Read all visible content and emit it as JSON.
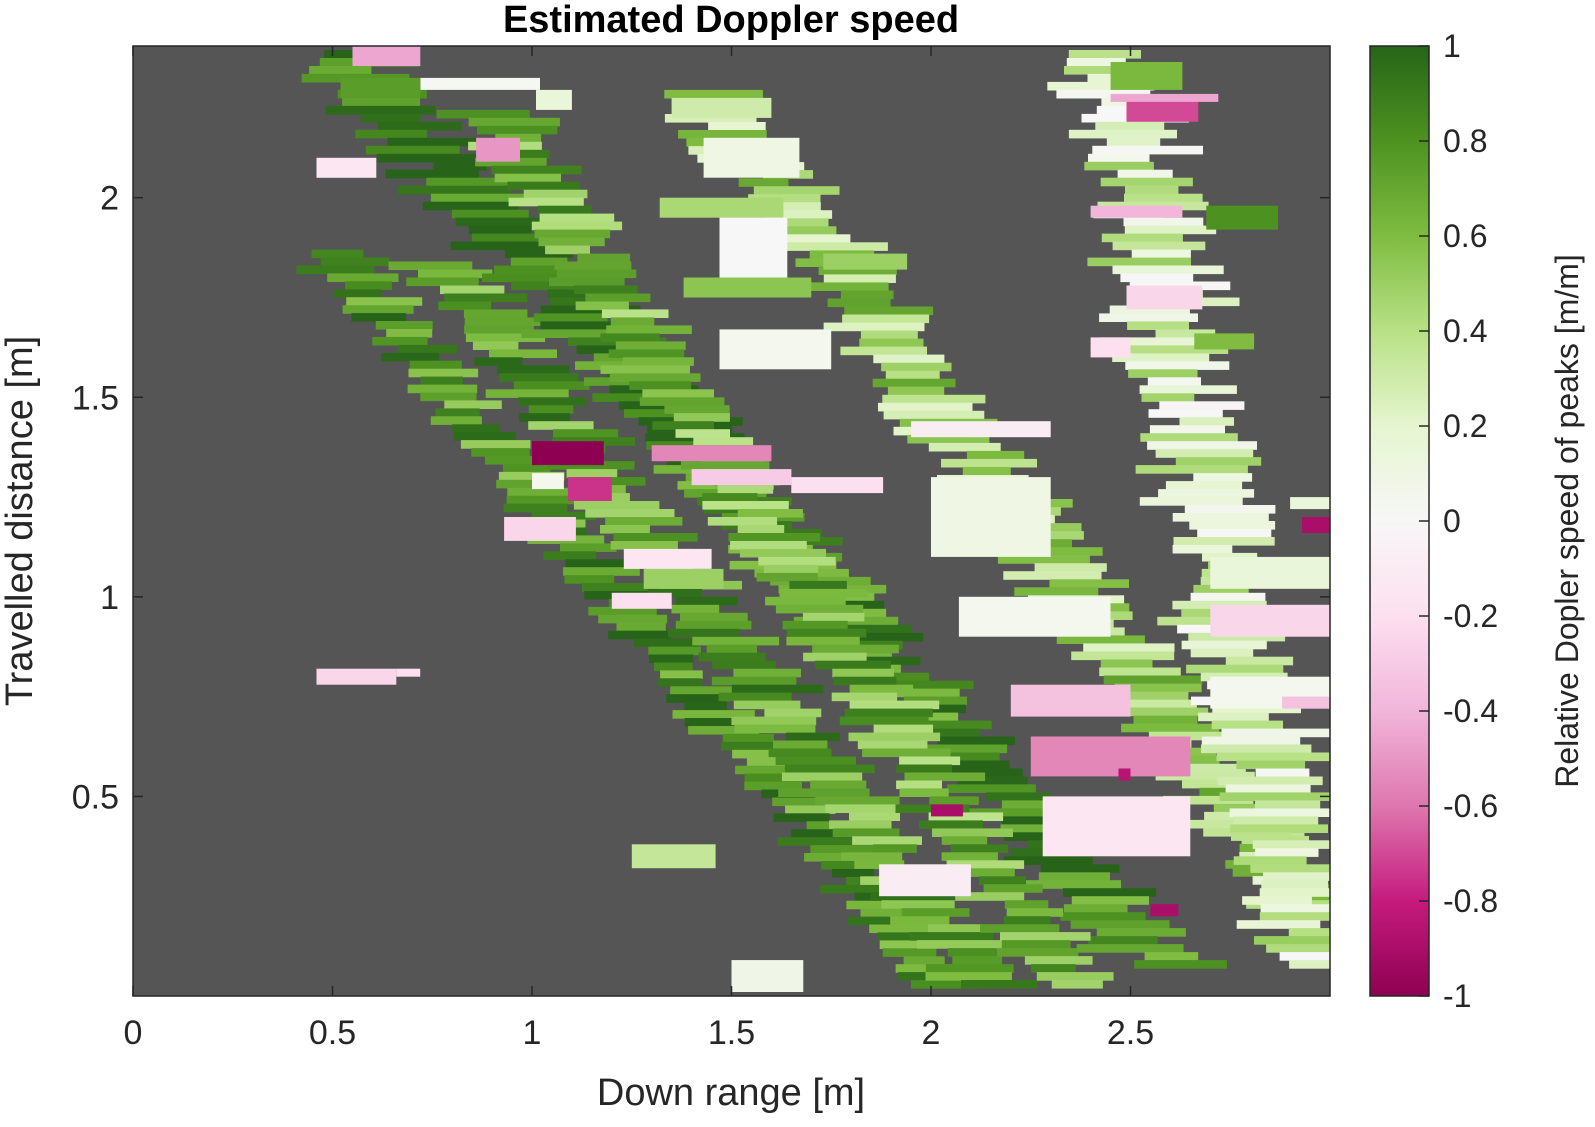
{
  "chart_data": {
    "type": "heatmap",
    "title": "Estimated Doppler speed",
    "xlabel": "Down range [m]",
    "ylabel": "Travelled distance [m]",
    "xlim": [
      0,
      3
    ],
    "ylim": [
      0,
      2.38
    ],
    "x_ticks": [
      "0",
      "0.5",
      "1",
      "1.5",
      "2",
      "2.5"
    ],
    "x_tick_values": [
      0,
      0.5,
      1,
      1.5,
      2,
      2.5
    ],
    "y_ticks": [
      "0.5",
      "1",
      "1.5",
      "2"
    ],
    "y_tick_values": [
      0.5,
      1,
      1.5,
      2
    ],
    "background_color": "#555555",
    "grid": false,
    "colorbar": {
      "label": "Relative Dopler speed of peaks [m/m]",
      "range": [
        -1,
        1
      ],
      "ticks": [
        "1",
        "0.8",
        "0.6",
        "0.4",
        "0.2",
        "0",
        "-0.2",
        "-0.4",
        "-0.6",
        "-0.8",
        "-1"
      ],
      "tick_values": [
        1,
        0.8,
        0.6,
        0.4,
        0.2,
        0,
        -0.2,
        -0.4,
        -0.6,
        -0.8,
        -1
      ],
      "colormap": "PiYG",
      "color_low": "#8e0152",
      "color_mid": "#f7f7f7",
      "color_high": "#276419"
    },
    "bands": [
      {
        "x_start": 0.5,
        "x_end": 2.05,
        "y_start": 1.85,
        "y_end": 0.0,
        "width": 0.16,
        "value": 0.78
      },
      {
        "x_start": 0.78,
        "x_end": 2.15,
        "y_start": 1.82,
        "y_end": 0.0,
        "width": 0.18,
        "value": 0.72
      },
      {
        "x_start": 0.52,
        "x_end": 2.6,
        "y_start": 2.35,
        "y_end": 0.05,
        "width": 0.22,
        "value": 0.85
      },
      {
        "x_start": 0.9,
        "x_end": 2.35,
        "y_start": 2.2,
        "y_end": 0.0,
        "width": 0.18,
        "value": 0.65
      },
      {
        "x_start": 1.45,
        "x_end": 2.95,
        "y_start": 2.25,
        "y_end": 0.2,
        "width": 0.2,
        "value": 0.45
      },
      {
        "x_start": 2.45,
        "x_end": 2.95,
        "y_start": 2.35,
        "y_end": 0.05,
        "width": 0.22,
        "value": 0.25
      }
    ],
    "patches": [
      {
        "x0": 0.55,
        "x1": 0.72,
        "y0": 2.33,
        "y1": 2.38,
        "value": -0.45
      },
      {
        "x0": 0.72,
        "x1": 1.02,
        "y0": 2.27,
        "y1": 2.3,
        "value": 0.02
      },
      {
        "x0": 0.46,
        "x1": 0.61,
        "y0": 2.05,
        "y1": 2.1,
        "value": -0.15
      },
      {
        "x0": 0.86,
        "x1": 0.97,
        "y0": 2.09,
        "y1": 2.15,
        "value": -0.5
      },
      {
        "x0": 1.35,
        "x1": 1.6,
        "y0": 2.2,
        "y1": 2.25,
        "value": 0.3
      },
      {
        "x0": 1.43,
        "x1": 1.67,
        "y0": 2.05,
        "y1": 2.15,
        "value": 0.1
      },
      {
        "x0": 1.32,
        "x1": 1.63,
        "y0": 1.95,
        "y1": 2.0,
        "value": 0.45
      },
      {
        "x0": 1.47,
        "x1": 1.64,
        "y0": 1.8,
        "y1": 1.95,
        "value": 0.0
      },
      {
        "x0": 1.38,
        "x1": 1.7,
        "y0": 1.75,
        "y1": 1.8,
        "value": 0.55
      },
      {
        "x0": 1.73,
        "x1": 1.94,
        "y0": 1.82,
        "y1": 1.86,
        "value": 0.5
      },
      {
        "x0": 1.47,
        "x1": 1.75,
        "y0": 1.57,
        "y1": 1.67,
        "value": 0.05
      },
      {
        "x0": 1.0,
        "x1": 1.18,
        "y0": 1.33,
        "y1": 1.39,
        "value": -1.0
      },
      {
        "x0": 1.0,
        "x1": 1.08,
        "y0": 1.27,
        "y1": 1.31,
        "value": 0.05
      },
      {
        "x0": 1.09,
        "x1": 1.2,
        "y0": 1.24,
        "y1": 1.3,
        "value": -0.75
      },
      {
        "x0": 0.93,
        "x1": 1.11,
        "y0": 1.14,
        "y1": 1.2,
        "value": -0.25
      },
      {
        "x0": 1.23,
        "x1": 1.45,
        "y0": 1.07,
        "y1": 1.12,
        "value": -0.15
      },
      {
        "x0": 1.3,
        "x1": 1.6,
        "y0": 1.34,
        "y1": 1.38,
        "value": -0.55
      },
      {
        "x0": 1.4,
        "x1": 1.65,
        "y0": 1.28,
        "y1": 1.32,
        "value": -0.3
      },
      {
        "x0": 1.65,
        "x1": 1.88,
        "y0": 1.26,
        "y1": 1.3,
        "value": -0.2
      },
      {
        "x0": 1.28,
        "x1": 1.48,
        "y0": 1.02,
        "y1": 1.07,
        "value": 0.5
      },
      {
        "x0": 1.2,
        "x1": 1.35,
        "y0": 0.97,
        "y1": 1.01,
        "value": -0.2
      },
      {
        "x0": 0.46,
        "x1": 0.66,
        "y0": 0.78,
        "y1": 0.82,
        "value": -0.25
      },
      {
        "x0": 0.66,
        "x1": 0.72,
        "y0": 0.8,
        "y1": 0.82,
        "value": -0.2
      },
      {
        "x0": 1.25,
        "x1": 1.46,
        "y0": 0.32,
        "y1": 0.38,
        "value": 0.35
      },
      {
        "x0": 1.5,
        "x1": 1.68,
        "y0": 0.01,
        "y1": 0.09,
        "value": 0.08
      },
      {
        "x0": 1.87,
        "x1": 2.1,
        "y0": 0.25,
        "y1": 0.33,
        "value": -0.1
      },
      {
        "x0": 1.95,
        "x1": 2.3,
        "y0": 1.4,
        "y1": 1.44,
        "value": -0.1
      },
      {
        "x0": 2.0,
        "x1": 2.3,
        "y0": 1.1,
        "y1": 1.3,
        "value": 0.1
      },
      {
        "x0": 2.07,
        "x1": 2.45,
        "y0": 0.9,
        "y1": 1.0,
        "value": 0.05
      },
      {
        "x0": 2.2,
        "x1": 2.5,
        "y0": 0.7,
        "y1": 0.78,
        "value": -0.35
      },
      {
        "x0": 2.25,
        "x1": 2.65,
        "y0": 0.55,
        "y1": 0.65,
        "value": -0.55
      },
      {
        "x0": 2.28,
        "x1": 2.65,
        "y0": 0.35,
        "y1": 0.5,
        "value": -0.15
      },
      {
        "x0": 1.01,
        "x1": 1.1,
        "y0": 2.22,
        "y1": 2.27,
        "value": 0.15
      },
      {
        "x0": 2.45,
        "x1": 2.63,
        "y0": 2.27,
        "y1": 2.34,
        "value": 0.62
      },
      {
        "x0": 2.49,
        "x1": 2.67,
        "y0": 2.19,
        "y1": 2.25,
        "value": -0.7
      },
      {
        "x0": 2.45,
        "x1": 2.72,
        "y0": 2.24,
        "y1": 2.26,
        "value": -0.45
      },
      {
        "x0": 2.4,
        "x1": 2.63,
        "y0": 1.95,
        "y1": 1.98,
        "value": -0.4
      },
      {
        "x0": 2.69,
        "x1": 2.87,
        "y0": 1.92,
        "y1": 1.98,
        "value": 0.8
      },
      {
        "x0": 2.49,
        "x1": 2.68,
        "y0": 1.72,
        "y1": 1.78,
        "value": -0.25
      },
      {
        "x0": 2.4,
        "x1": 2.5,
        "y0": 1.6,
        "y1": 1.65,
        "value": -0.2
      },
      {
        "x0": 2.66,
        "x1": 2.81,
        "y0": 1.62,
        "y1": 1.66,
        "value": 0.6
      },
      {
        "x0": 2.93,
        "x1": 3.0,
        "y0": 1.16,
        "y1": 1.2,
        "value": -0.9
      },
      {
        "x0": 2.9,
        "x1": 3.0,
        "y0": 1.22,
        "y1": 1.25,
        "value": 0.15
      },
      {
        "x0": 2.7,
        "x1": 3.0,
        "y0": 1.02,
        "y1": 1.1,
        "value": 0.15
      },
      {
        "x0": 2.7,
        "x1": 3.0,
        "y0": 0.9,
        "y1": 0.98,
        "value": -0.25
      },
      {
        "x0": 2.7,
        "x1": 3.0,
        "y0": 0.72,
        "y1": 0.8,
        "value": 0.05
      },
      {
        "x0": 2.88,
        "x1": 3.0,
        "y0": 0.72,
        "y1": 0.75,
        "value": -0.35
      },
      {
        "x0": 2.55,
        "x1": 2.62,
        "y0": 0.2,
        "y1": 0.23,
        "value": -0.9
      },
      {
        "x0": 2.0,
        "x1": 2.08,
        "y0": 0.45,
        "y1": 0.48,
        "value": -0.9
      },
      {
        "x0": 2.47,
        "x1": 2.5,
        "y0": 0.54,
        "y1": 0.57,
        "value": -0.85
      },
      {
        "x0": 0.52,
        "x1": 0.72,
        "y0": 2.25,
        "y1": 2.3,
        "value": 0.75
      }
    ]
  }
}
